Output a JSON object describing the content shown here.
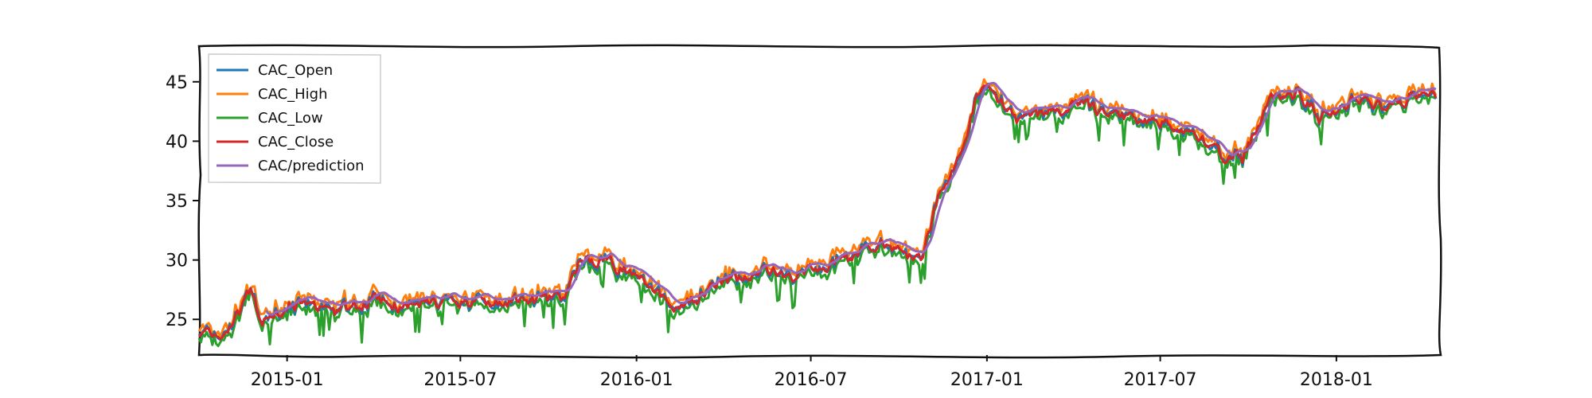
{
  "chart_data": {
    "type": "line",
    "title": "",
    "xlabel": "",
    "ylabel": "",
    "xlim": [
      "2014-10-01",
      "2018-04-20"
    ],
    "ylim": [
      22,
      48
    ],
    "grid": false,
    "legend_position": "top-left",
    "x_ticks": [
      "2015-01",
      "2015-07",
      "2016-01",
      "2016-07",
      "2017-01",
      "2017-07",
      "2018-01"
    ],
    "x_tick_dates": [
      "2015-01-01",
      "2015-07-01",
      "2016-01-01",
      "2016-07-01",
      "2017-01-01",
      "2017-07-01",
      "2018-01-01"
    ],
    "y_ticks": [
      25,
      30,
      35,
      40,
      45
    ],
    "key_points": {
      "dates": [
        "2014-10-01",
        "2014-10-20",
        "2014-11-05",
        "2014-11-25",
        "2014-12-05",
        "2015-01-01",
        "2015-02-15",
        "2015-03-15",
        "2015-04-01",
        "2015-05-01",
        "2015-07-01",
        "2015-09-01",
        "2015-10-20",
        "2015-11-01",
        "2015-11-15",
        "2016-01-05",
        "2016-02-10",
        "2016-03-15",
        "2016-05-01",
        "2016-06-15",
        "2016-08-01",
        "2016-09-15",
        "2016-10-25",
        "2016-11-10",
        "2016-12-01",
        "2016-12-25",
        "2017-01-15",
        "2017-02-01",
        "2017-03-01",
        "2017-04-10",
        "2017-05-15",
        "2017-06-15",
        "2017-07-20",
        "2017-09-01",
        "2017-09-25",
        "2017-10-25",
        "2017-11-25",
        "2017-12-15",
        "2018-01-20",
        "2018-03-01",
        "2018-03-20",
        "2018-04-15"
      ],
      "values": [
        24.0,
        23.5,
        24.5,
        27.5,
        24.5,
        26.5,
        25.5,
        26.0,
        27.0,
        26.0,
        26.5,
        26.5,
        27.0,
        29.5,
        30.0,
        29.0,
        25.5,
        27.5,
        29.0,
        28.5,
        30.0,
        31.5,
        30.0,
        35.0,
        38.5,
        44.5,
        43.5,
        41.5,
        42.5,
        43.0,
        42.0,
        42.0,
        41.5,
        39.0,
        38.5,
        43.5,
        44.0,
        42.0,
        43.5,
        43.0,
        44.0,
        43.8
      ]
    },
    "series": [
      {
        "name": "CAC_Open",
        "color": "#1f77b4",
        "kind": "open"
      },
      {
        "name": "CAC_High",
        "color": "#ff7f0e",
        "kind": "high"
      },
      {
        "name": "CAC_Low",
        "color": "#2ca02c",
        "kind": "low"
      },
      {
        "name": "CAC_Close",
        "color": "#d62728",
        "kind": "close"
      },
      {
        "name": "CAC/prediction",
        "color": "#9467bd",
        "kind": "prediction",
        "start": "2014-12-10"
      }
    ]
  }
}
